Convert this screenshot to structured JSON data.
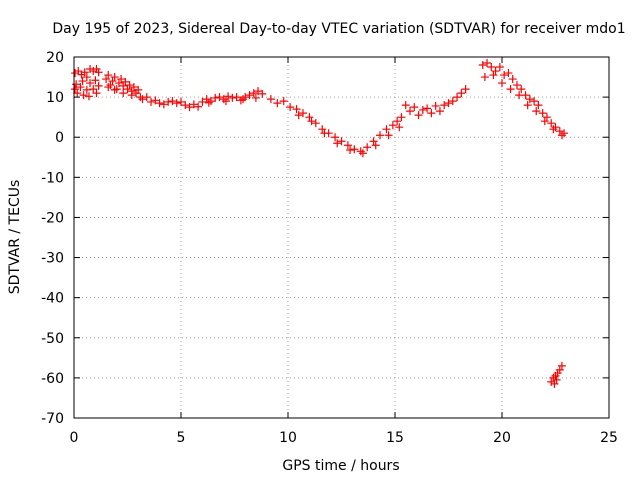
{
  "chart_data": {
    "type": "scatter",
    "title": "Day 195 of 2023, Sidereal Day-to-day VTEC variation (SDTVAR) for receiver mdo1",
    "xlabel": "GPS time / hours",
    "ylabel": "SDTVAR / TECUs",
    "xlim": [
      0,
      25
    ],
    "ylim": [
      -70,
      20
    ],
    "xticks": [
      0,
      5,
      10,
      15,
      20,
      25
    ],
    "yticks": [
      20,
      10,
      0,
      -10,
      -20,
      -30,
      -40,
      -50,
      -60,
      -70
    ],
    "xtick_labels": [
      "0",
      "5",
      "10",
      "15",
      "20",
      "25"
    ],
    "ytick_labels": [
      "20",
      "10",
      "0",
      "-10",
      "-20",
      "-30",
      "-40",
      "-50",
      "-60",
      "-70"
    ],
    "grid": true,
    "marker": "plus",
    "color": "#ff0000",
    "series": [
      {
        "name": "SDTVAR",
        "points": [
          [
            0.05,
            16.0
          ],
          [
            0.2,
            16.5
          ],
          [
            0.35,
            15.6
          ],
          [
            0.5,
            16.2
          ],
          [
            0.6,
            15.0
          ],
          [
            0.75,
            17.0
          ],
          [
            0.9,
            16.5
          ],
          [
            1.05,
            17.0
          ],
          [
            1.15,
            16.2
          ],
          [
            0.05,
            12.0
          ],
          [
            0.15,
            11.0
          ],
          [
            0.3,
            12.5
          ],
          [
            0.45,
            10.5
          ],
          [
            0.6,
            11.8
          ],
          [
            0.75,
            13.5
          ],
          [
            0.9,
            12.0
          ],
          [
            1.05,
            11.0
          ],
          [
            1.15,
            12.8
          ],
          [
            0.1,
            13.2
          ],
          [
            0.4,
            14.0
          ],
          [
            0.7,
            10.2
          ],
          [
            1.0,
            14.2
          ],
          [
            1.5,
            14.5
          ],
          [
            1.6,
            15.5
          ],
          [
            1.7,
            13.0
          ],
          [
            1.8,
            14.0
          ],
          [
            1.9,
            15.0
          ],
          [
            2.0,
            12.0
          ],
          [
            2.1,
            13.5
          ],
          [
            2.2,
            14.5
          ],
          [
            2.3,
            12.8
          ],
          [
            2.4,
            13.8
          ],
          [
            2.5,
            12.0
          ],
          [
            2.6,
            13.0
          ],
          [
            2.7,
            11.5
          ],
          [
            2.8,
            12.5
          ],
          [
            2.9,
            11.0
          ],
          [
            3.0,
            11.8
          ],
          [
            1.6,
            12.5
          ],
          [
            1.9,
            11.8
          ],
          [
            2.3,
            11.0
          ],
          [
            2.7,
            10.5
          ],
          [
            3.1,
            10.0
          ],
          [
            3.2,
            9.5
          ],
          [
            3.4,
            10.0
          ],
          [
            3.6,
            8.8
          ],
          [
            3.8,
            9.2
          ],
          [
            4.0,
            8.5
          ],
          [
            4.2,
            8.2
          ],
          [
            4.4,
            8.8
          ],
          [
            4.6,
            9.0
          ],
          [
            4.8,
            8.5
          ],
          [
            5.0,
            8.8
          ],
          [
            5.2,
            8.0
          ],
          [
            5.4,
            7.5
          ],
          [
            5.6,
            8.2
          ],
          [
            5.8,
            7.6
          ],
          [
            6.0,
            8.8
          ],
          [
            6.2,
            9.5
          ],
          [
            6.4,
            9.0
          ],
          [
            6.6,
            9.8
          ],
          [
            6.8,
            10.0
          ],
          [
            7.0,
            9.5
          ],
          [
            7.2,
            10.2
          ],
          [
            7.4,
            9.8
          ],
          [
            7.6,
            10.0
          ],
          [
            7.8,
            9.2
          ],
          [
            8.0,
            10.0
          ],
          [
            8.2,
            10.5
          ],
          [
            8.4,
            11.0
          ],
          [
            8.6,
            11.5
          ],
          [
            8.8,
            10.8
          ],
          [
            6.3,
            8.6
          ],
          [
            7.1,
            9.0
          ],
          [
            7.9,
            9.5
          ],
          [
            8.5,
            9.8
          ],
          [
            9.2,
            9.5
          ],
          [
            9.5,
            8.5
          ],
          [
            9.8,
            9.0
          ],
          [
            10.1,
            7.5
          ],
          [
            10.4,
            7.0
          ],
          [
            10.7,
            6.0
          ],
          [
            11.0,
            5.0
          ],
          [
            11.3,
            3.5
          ],
          [
            11.6,
            2.0
          ],
          [
            11.9,
            1.0
          ],
          [
            12.2,
            0.0
          ],
          [
            12.5,
            -1.0
          ],
          [
            12.8,
            -2.0
          ],
          [
            13.1,
            -3.0
          ],
          [
            13.4,
            -3.5
          ],
          [
            13.7,
            -2.5
          ],
          [
            14.0,
            -1.0
          ],
          [
            14.3,
            0.5
          ],
          [
            14.6,
            2.0
          ],
          [
            14.9,
            3.0
          ],
          [
            15.1,
            4.0
          ],
          [
            15.3,
            5.0
          ],
          [
            10.5,
            5.5
          ],
          [
            11.1,
            4.0
          ],
          [
            11.7,
            1.0
          ],
          [
            12.3,
            -1.5
          ],
          [
            12.9,
            -3.2
          ],
          [
            13.5,
            -4.0
          ],
          [
            14.1,
            -2.0
          ],
          [
            14.7,
            0.5
          ],
          [
            15.2,
            2.5
          ],
          [
            15.5,
            8.0
          ],
          [
            15.7,
            6.5
          ],
          [
            15.9,
            7.5
          ],
          [
            16.1,
            5.5
          ],
          [
            16.3,
            6.8
          ],
          [
            16.5,
            7.2
          ],
          [
            16.7,
            6.0
          ],
          [
            16.9,
            7.8
          ],
          [
            17.1,
            6.5
          ],
          [
            17.3,
            8.0
          ],
          [
            17.5,
            8.5
          ],
          [
            17.7,
            9.0
          ],
          [
            17.9,
            10.0
          ],
          [
            18.1,
            11.0
          ],
          [
            18.3,
            12.0
          ],
          [
            19.1,
            18.0
          ],
          [
            19.3,
            18.5
          ],
          [
            19.5,
            17.5
          ],
          [
            19.7,
            16.5
          ],
          [
            19.9,
            17.5
          ],
          [
            20.1,
            15.5
          ],
          [
            20.3,
            16.0
          ],
          [
            20.5,
            14.5
          ],
          [
            20.7,
            13.0
          ],
          [
            20.9,
            12.0
          ],
          [
            21.1,
            10.5
          ],
          [
            21.3,
            9.5
          ],
          [
            21.5,
            9.0
          ],
          [
            21.7,
            8.0
          ],
          [
            21.9,
            6.0
          ],
          [
            22.1,
            5.0
          ],
          [
            22.3,
            3.5
          ],
          [
            22.5,
            2.5
          ],
          [
            22.7,
            1.5
          ],
          [
            22.9,
            1.0
          ],
          [
            19.2,
            15.0
          ],
          [
            19.6,
            15.5
          ],
          [
            20.0,
            13.5
          ],
          [
            20.4,
            12.0
          ],
          [
            20.8,
            10.5
          ],
          [
            21.2,
            8.0
          ],
          [
            21.6,
            6.5
          ],
          [
            22.0,
            4.0
          ],
          [
            22.4,
            2.0
          ],
          [
            22.8,
            0.5
          ],
          [
            22.3,
            -61.0
          ],
          [
            22.4,
            -60.0
          ],
          [
            22.5,
            -59.5
          ],
          [
            22.6,
            -58.8
          ],
          [
            22.7,
            -58.0
          ],
          [
            22.8,
            -57.0
          ],
          [
            22.45,
            -61.5
          ],
          [
            22.55,
            -60.5
          ]
        ]
      }
    ]
  }
}
